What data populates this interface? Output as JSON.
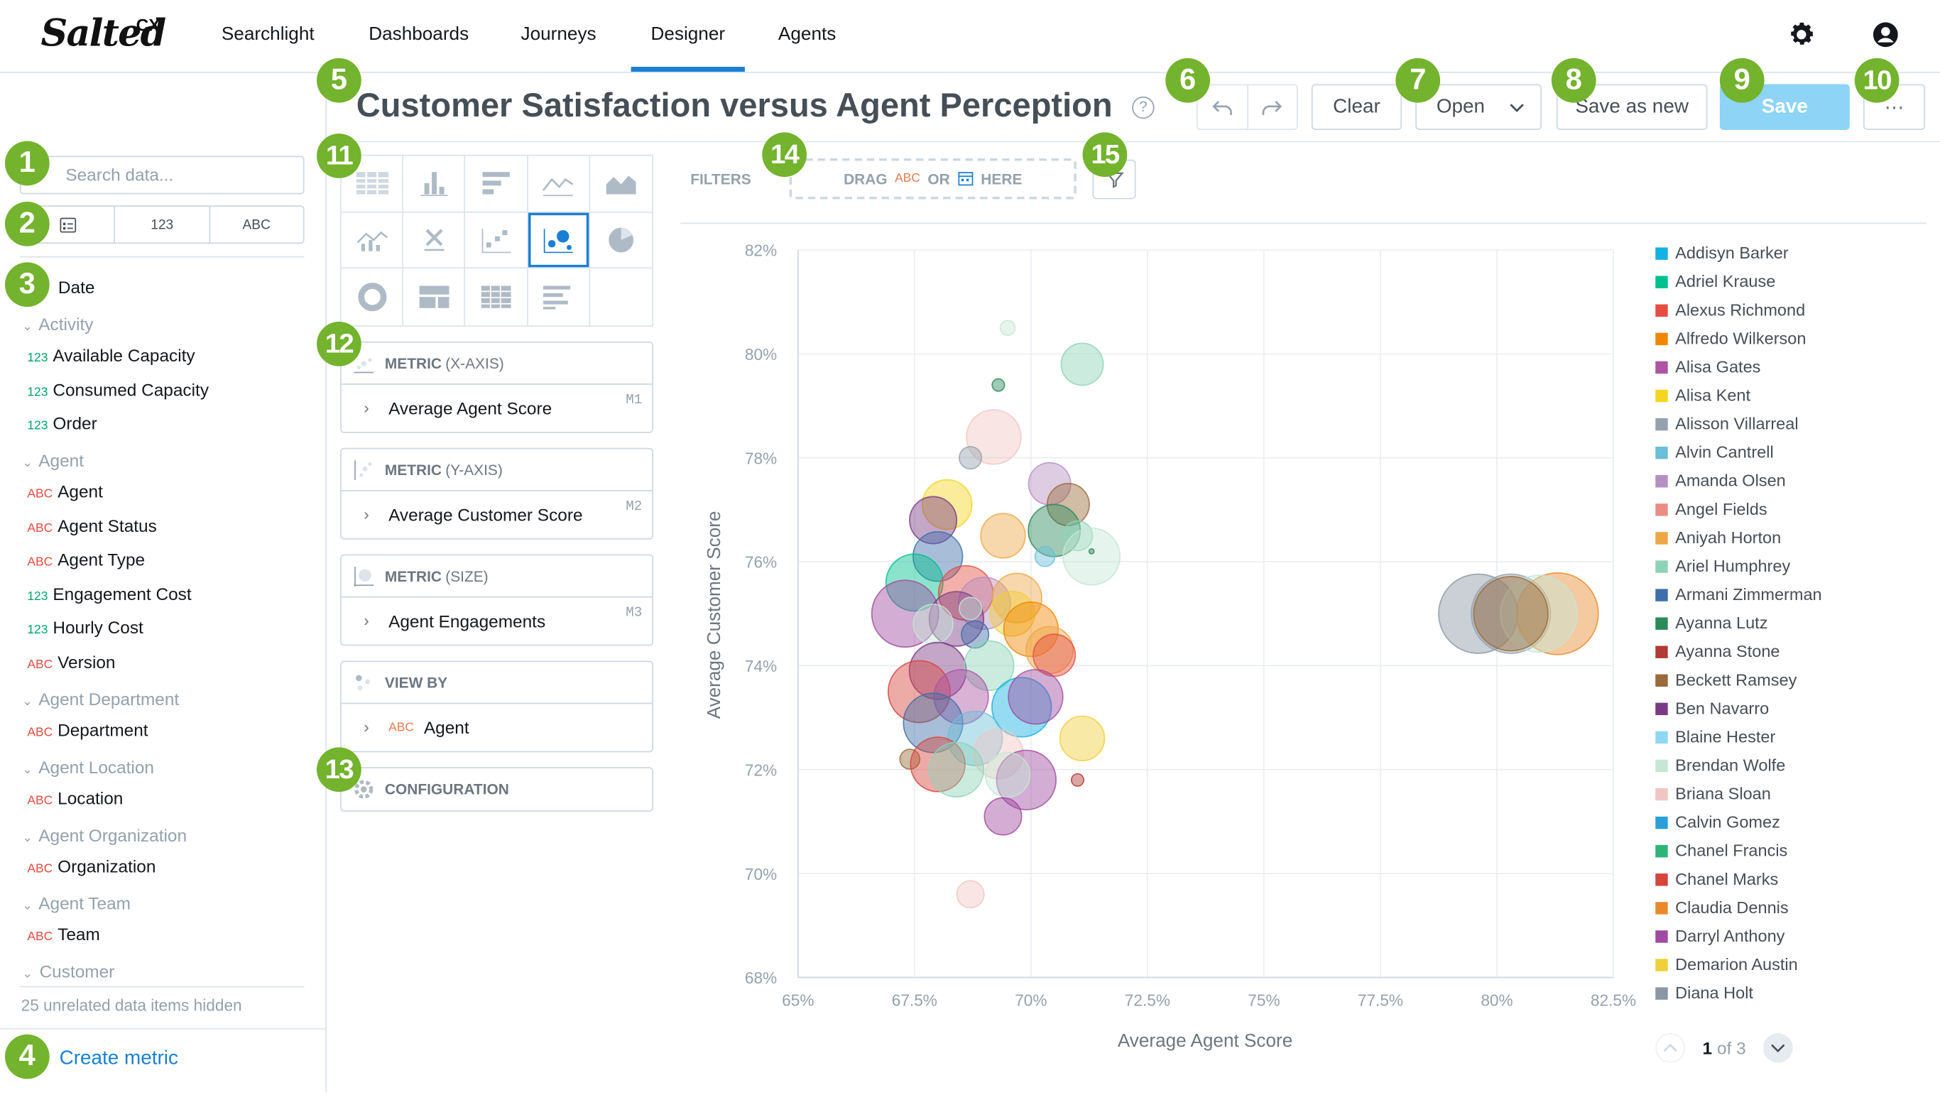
{
  "app": {
    "logo": "Salted",
    "logo_suffix": "CX",
    "nav": [
      "Searchlight",
      "Dashboards",
      "Journeys",
      "Designer",
      "Agents"
    ],
    "active_nav": "Designer"
  },
  "badges": [
    "1",
    "2",
    "3",
    "4",
    "5",
    "6",
    "7",
    "8",
    "9",
    "10",
    "11",
    "12",
    "13",
    "14",
    "15"
  ],
  "badge_color": "#73b32d",
  "catalog": {
    "search_placeholder": "Search data...",
    "type_filters": [
      "123",
      "ABC"
    ],
    "date_label": "Date",
    "groups": [
      {
        "name": "Activity",
        "items": [
          {
            "type": "123",
            "label": "Available Capacity"
          },
          {
            "type": "123",
            "label": "Consumed Capacity"
          },
          {
            "type": "123",
            "label": "Order"
          }
        ]
      },
      {
        "name": "Agent",
        "items": [
          {
            "type": "ABC",
            "label": "Agent"
          },
          {
            "type": "ABC",
            "label": "Agent Status"
          },
          {
            "type": "ABC",
            "label": "Agent Type"
          },
          {
            "type": "123",
            "label": "Engagement Cost"
          },
          {
            "type": "123",
            "label": "Hourly Cost"
          },
          {
            "type": "ABC",
            "label": "Version"
          }
        ]
      },
      {
        "name": "Agent Department",
        "items": [
          {
            "type": "ABC",
            "label": "Department"
          }
        ]
      },
      {
        "name": "Agent Location",
        "items": [
          {
            "type": "ABC",
            "label": "Location"
          }
        ]
      },
      {
        "name": "Agent Organization",
        "items": [
          {
            "type": "ABC",
            "label": "Organization"
          }
        ]
      },
      {
        "name": "Agent Team",
        "items": [
          {
            "type": "ABC",
            "label": "Team"
          }
        ]
      },
      {
        "name": "Customer",
        "items": []
      }
    ],
    "hidden_note": "25 unrelated data items hidden",
    "create_metric": "Create metric"
  },
  "toolbar": {
    "title": "Customer Satisfaction versus Agent Perception",
    "help": "?",
    "clear": "Clear",
    "open": "Open",
    "save_as_new": "Save as new",
    "save": "Save",
    "more": "⋯"
  },
  "buckets": [
    {
      "title": "METRIC",
      "sub": "(X-AXIS)",
      "value": "Average Agent Score",
      "seq": "M1"
    },
    {
      "title": "METRIC",
      "sub": "(Y-AXIS)",
      "value": "Average Customer Score",
      "seq": "M2"
    },
    {
      "title": "METRIC",
      "sub": "(SIZE)",
      "value": "Agent Engagements",
      "seq": "M3"
    },
    {
      "title": "VIEW BY",
      "sub": "",
      "value": "Agent",
      "type": "ABC"
    },
    {
      "title": "CONFIGURATION",
      "sub": ""
    }
  ],
  "filters": {
    "label": "FILTERS",
    "drop_text_1": "DRAG",
    "drop_abc": "ABC",
    "drop_text_2": "OR",
    "drop_text_3": "HERE"
  },
  "chart_data": {
    "type": "scatter",
    "subtype": "bubble",
    "xlabel": "Average Agent Score",
    "ylabel": "Average Customer Score",
    "xlim": [
      65,
      82.5
    ],
    "ylim": [
      68,
      82
    ],
    "x_ticks": [
      "65%",
      "67.5%",
      "70%",
      "72.5%",
      "75%",
      "77.5%",
      "80%",
      "82.5%"
    ],
    "y_ticks": [
      "68%",
      "70%",
      "72%",
      "74%",
      "76%",
      "78%",
      "80%",
      "82%"
    ],
    "grid": true,
    "legend_position": "right",
    "series": [
      {
        "name": "Addisyn Barker",
        "color": "#14b2e2"
      },
      {
        "name": "Adriel Krause",
        "color": "#00c18d"
      },
      {
        "name": "Alexus Richmond",
        "color": "#e54d42"
      },
      {
        "name": "Alfredo Wilkerson",
        "color": "#f18600"
      },
      {
        "name": "Alisa Gates",
        "color": "#ab55a3"
      },
      {
        "name": "Alisa Kent",
        "color": "#f4d521"
      },
      {
        "name": "Alisson Villarreal",
        "color": "#94a1ad"
      },
      {
        "name": "Alvin Cantrell",
        "color": "#6bbfd8"
      },
      {
        "name": "Amanda Olsen",
        "color": "#b58fc2"
      },
      {
        "name": "Angel Fields",
        "color": "#e98d85"
      },
      {
        "name": "Aniyah Horton",
        "color": "#eea746"
      },
      {
        "name": "Ariel Humphrey",
        "color": "#8ed3b9"
      },
      {
        "name": "Armani Zimmerman",
        "color": "#3d6fa8"
      },
      {
        "name": "Ayanna Lutz",
        "color": "#2a8a5a"
      },
      {
        "name": "Ayanna Stone",
        "color": "#b23a35"
      },
      {
        "name": "Beckett Ramsey",
        "color": "#9a6a3a"
      },
      {
        "name": "Ben Navarro",
        "color": "#7a3a85"
      },
      {
        "name": "Blaine Hester",
        "color": "#8fd6f2"
      },
      {
        "name": "Brendan Wolfe",
        "color": "#c6e6d6"
      },
      {
        "name": "Briana Sloan",
        "color": "#f0c6c3"
      },
      {
        "name": "Calvin Gomez",
        "color": "#2aa0d8"
      },
      {
        "name": "Chanel Francis",
        "color": "#2fb57a"
      },
      {
        "name": "Chanel Marks",
        "color": "#d6453c"
      },
      {
        "name": "Claudia Dennis",
        "color": "#e88a2c"
      },
      {
        "name": "Darryl Anthony",
        "color": "#a04aa0"
      },
      {
        "name": "Demarion Austin",
        "color": "#f0cf3a"
      },
      {
        "name": "Diana Holt",
        "color": "#8a96a3"
      }
    ],
    "points": [
      {
        "x": 69.5,
        "y": 80.5,
        "r": 6,
        "c": 18
      },
      {
        "x": 71.1,
        "y": 79.8,
        "r": 17,
        "c": 11
      },
      {
        "x": 69.3,
        "y": 79.4,
        "r": 5,
        "c": 13
      },
      {
        "x": 69.2,
        "y": 78.4,
        "r": 22,
        "c": 19
      },
      {
        "x": 68.7,
        "y": 78.0,
        "r": 9,
        "c": 6
      },
      {
        "x": 70.4,
        "y": 77.5,
        "r": 17,
        "c": 8
      },
      {
        "x": 68.2,
        "y": 77.1,
        "r": 20,
        "c": 5
      },
      {
        "x": 70.8,
        "y": 77.1,
        "r": 17,
        "c": 15
      },
      {
        "x": 67.9,
        "y": 76.8,
        "r": 19,
        "c": 16
      },
      {
        "x": 70.5,
        "y": 76.6,
        "r": 21,
        "c": 13
      },
      {
        "x": 71.0,
        "y": 76.5,
        "r": 12,
        "c": 11
      },
      {
        "x": 69.4,
        "y": 76.5,
        "r": 18,
        "c": 10
      },
      {
        "x": 71.3,
        "y": 76.1,
        "r": 23,
        "c": 18
      },
      {
        "x": 70.3,
        "y": 76.1,
        "r": 8,
        "c": 7
      },
      {
        "x": 71.3,
        "y": 76.2,
        "r": 2,
        "c": 13
      },
      {
        "x": 68.0,
        "y": 76.1,
        "r": 20,
        "c": 12
      },
      {
        "x": 67.5,
        "y": 75.6,
        "r": 23,
        "c": 1
      },
      {
        "x": 68.6,
        "y": 75.4,
        "r": 22,
        "c": 2
      },
      {
        "x": 69.0,
        "y": 75.2,
        "r": 21,
        "c": 8
      },
      {
        "x": 69.7,
        "y": 75.3,
        "r": 20,
        "c": 10
      },
      {
        "x": 67.3,
        "y": 75.0,
        "r": 27,
        "c": 24
      },
      {
        "x": 68.4,
        "y": 74.9,
        "r": 22,
        "c": 16
      },
      {
        "x": 69.6,
        "y": 75.0,
        "r": 18,
        "c": 25
      },
      {
        "x": 70.0,
        "y": 74.7,
        "r": 22,
        "c": 3
      },
      {
        "x": 67.9,
        "y": 74.8,
        "r": 16,
        "c": 18
      },
      {
        "x": 68.8,
        "y": 74.6,
        "r": 11,
        "c": 12
      },
      {
        "x": 70.4,
        "y": 74.3,
        "r": 19,
        "c": 10
      },
      {
        "x": 68.0,
        "y": 73.9,
        "r": 23,
        "c": 16
      },
      {
        "x": 69.1,
        "y": 74.0,
        "r": 20,
        "c": 11
      },
      {
        "x": 70.5,
        "y": 74.2,
        "r": 17,
        "c": 2
      },
      {
        "x": 67.6,
        "y": 73.5,
        "r": 25,
        "c": 22
      },
      {
        "x": 68.5,
        "y": 73.4,
        "r": 22,
        "c": 4
      },
      {
        "x": 69.8,
        "y": 73.2,
        "r": 24,
        "c": 0
      },
      {
        "x": 70.1,
        "y": 73.4,
        "r": 22,
        "c": 24
      },
      {
        "x": 71.1,
        "y": 72.6,
        "r": 18,
        "c": 25
      },
      {
        "x": 67.9,
        "y": 72.9,
        "r": 24,
        "c": 12
      },
      {
        "x": 68.8,
        "y": 72.6,
        "r": 22,
        "c": 7
      },
      {
        "x": 69.3,
        "y": 72.3,
        "r": 20,
        "c": 19
      },
      {
        "x": 67.4,
        "y": 72.2,
        "r": 8,
        "c": 15
      },
      {
        "x": 68.0,
        "y": 72.1,
        "r": 22,
        "c": 22
      },
      {
        "x": 68.4,
        "y": 72.0,
        "r": 22,
        "c": 11
      },
      {
        "x": 69.9,
        "y": 71.8,
        "r": 24,
        "c": 24
      },
      {
        "x": 69.5,
        "y": 71.9,
        "r": 18,
        "c": 18
      },
      {
        "x": 69.4,
        "y": 71.1,
        "r": 15,
        "c": 24
      },
      {
        "x": 71.0,
        "y": 71.8,
        "r": 5,
        "c": 14
      },
      {
        "x": 68.7,
        "y": 69.6,
        "r": 11,
        "c": 19
      },
      {
        "x": 68.7,
        "y": 75.1,
        "r": 9,
        "c": 18
      },
      {
        "x": 79.6,
        "y": 75.0,
        "r": 32,
        "c": 26
      },
      {
        "x": 80.3,
        "y": 75.0,
        "r": 32,
        "c": 6
      },
      {
        "x": 81.3,
        "y": 75.0,
        "r": 33,
        "c": 23
      },
      {
        "x": 80.9,
        "y": 75.0,
        "r": 31,
        "c": 18
      },
      {
        "x": 80.3,
        "y": 75.0,
        "r": 30,
        "c": 15
      }
    ]
  },
  "pager": {
    "current": "1",
    "total_label": "of 3"
  }
}
